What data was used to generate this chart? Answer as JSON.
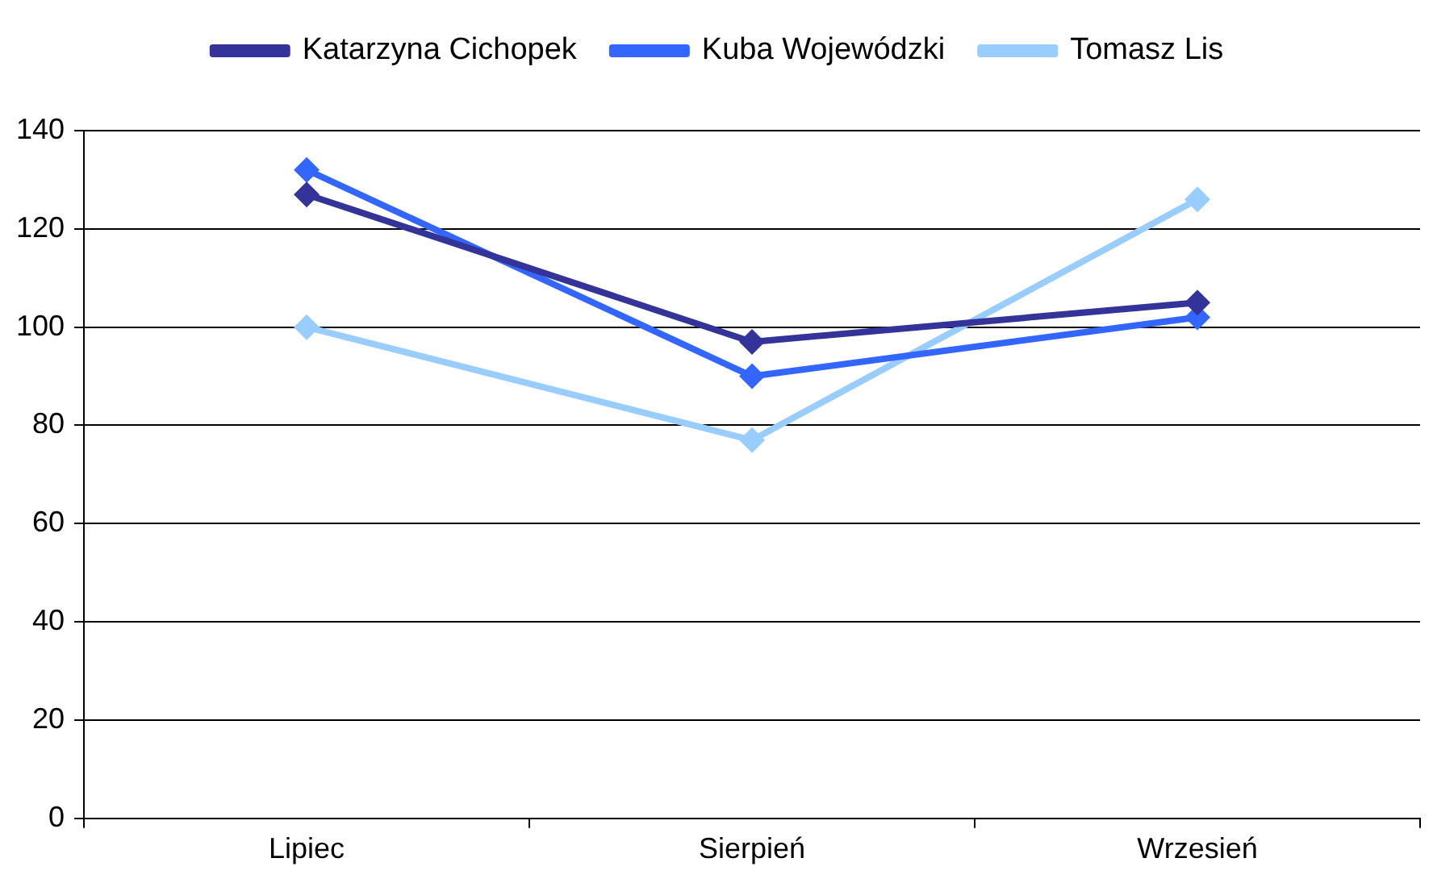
{
  "chart_data": {
    "type": "line",
    "categories": [
      "Lipiec",
      "Sierpień",
      "Wrzesień"
    ],
    "series": [
      {
        "name": "Katarzyna Cichopek",
        "color": "#333399",
        "values": [
          127,
          97,
          105
        ]
      },
      {
        "name": "Kuba Wojewódzki",
        "color": "#3366ff",
        "values": [
          132,
          90,
          102
        ]
      },
      {
        "name": "Tomasz Lis",
        "color": "#99ccff",
        "values": [
          100,
          77,
          126
        ]
      }
    ],
    "ylim": [
      0,
      140
    ],
    "yticks": [
      0,
      20,
      40,
      60,
      80,
      100,
      120,
      140
    ],
    "grid": "y",
    "legend": "top",
    "marker": "diamond",
    "line_style": "solid"
  }
}
